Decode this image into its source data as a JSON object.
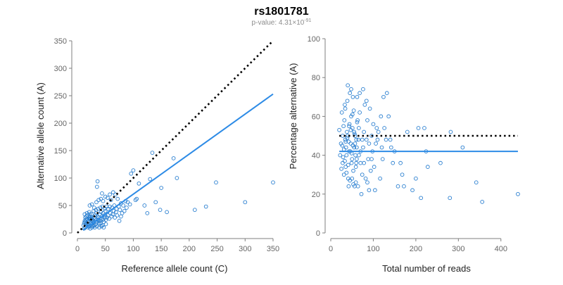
{
  "title": "rs1801781",
  "subtitle": {
    "prefix": "p-value: 4.31×10",
    "exponent": "-91"
  },
  "colors": {
    "points": "#2a7fd0",
    "fit": "#2d8be6",
    "reference": "#000000",
    "axis": "#7f7f7f"
  },
  "chart_data": [
    {
      "type": "scatter",
      "xlabel": "Reference allele count (C)",
      "ylabel": "Alternative allele count (A)",
      "xlim": [
        0,
        350
      ],
      "ylim": [
        0,
        350
      ],
      "xticks": [
        0,
        50,
        100,
        150,
        200,
        250,
        300,
        350
      ],
      "yticks": [
        0,
        50,
        100,
        150,
        200,
        250,
        300,
        350
      ],
      "reference_line": {
        "style": "dotted",
        "from": [
          0,
          0
        ],
        "to": [
          350,
          350
        ]
      },
      "fit_line": {
        "style": "solid",
        "from": [
          10,
          5
        ],
        "to": [
          350,
          253
        ]
      },
      "points": [
        [
          12,
          8
        ],
        [
          14,
          10
        ],
        [
          16,
          12
        ],
        [
          18,
          14
        ],
        [
          20,
          16
        ],
        [
          22,
          12
        ],
        [
          24,
          18
        ],
        [
          26,
          10
        ],
        [
          28,
          20
        ],
        [
          30,
          14
        ],
        [
          13,
          22
        ],
        [
          15,
          24
        ],
        [
          17,
          26
        ],
        [
          19,
          20
        ],
        [
          21,
          28
        ],
        [
          23,
          30
        ],
        [
          25,
          22
        ],
        [
          27,
          24
        ],
        [
          29,
          18
        ],
        [
          31,
          26
        ],
        [
          11,
          14
        ],
        [
          12,
          18
        ],
        [
          14,
          28
        ],
        [
          16,
          30
        ],
        [
          18,
          32
        ],
        [
          20,
          22
        ],
        [
          22,
          34
        ],
        [
          24,
          26
        ],
        [
          26,
          28
        ],
        [
          28,
          12
        ],
        [
          33,
          16
        ],
        [
          35,
          20
        ],
        [
          37,
          24
        ],
        [
          39,
          18
        ],
        [
          41,
          22
        ],
        [
          43,
          26
        ],
        [
          45,
          14
        ],
        [
          47,
          20
        ],
        [
          49,
          28
        ],
        [
          51,
          24
        ],
        [
          32,
          32
        ],
        [
          34,
          36
        ],
        [
          36,
          30
        ],
        [
          38,
          28
        ],
        [
          40,
          34
        ],
        [
          42,
          38
        ],
        [
          44,
          30
        ],
        [
          46,
          36
        ],
        [
          48,
          32
        ],
        [
          50,
          40
        ],
        [
          13,
          34
        ],
        [
          17,
          36
        ],
        [
          21,
          38
        ],
        [
          25,
          34
        ],
        [
          29,
          40
        ],
        [
          33,
          42
        ],
        [
          37,
          44
        ],
        [
          41,
          46
        ],
        [
          45,
          48
        ],
        [
          49,
          44
        ],
        [
          15,
          16
        ],
        [
          19,
          10
        ],
        [
          23,
          8
        ],
        [
          27,
          14
        ],
        [
          31,
          10
        ],
        [
          35,
          12
        ],
        [
          39,
          10
        ],
        [
          43,
          12
        ],
        [
          47,
          10
        ],
        [
          51,
          16
        ],
        [
          53,
          28
        ],
        [
          55,
          32
        ],
        [
          57,
          26
        ],
        [
          59,
          36
        ],
        [
          61,
          30
        ],
        [
          63,
          34
        ],
        [
          65,
          40
        ],
        [
          67,
          28
        ],
        [
          69,
          38
        ],
        [
          71,
          32
        ],
        [
          55,
          44
        ],
        [
          58,
          48
        ],
        [
          62,
          46
        ],
        [
          66,
          50
        ],
        [
          70,
          44
        ],
        [
          74,
          48
        ],
        [
          78,
          54
        ],
        [
          82,
          50
        ],
        [
          86,
          58
        ],
        [
          90,
          56
        ],
        [
          22,
          50
        ],
        [
          26,
          52
        ],
        [
          30,
          46
        ],
        [
          34,
          56
        ],
        [
          38,
          60
        ],
        [
          42,
          62
        ],
        [
          46,
          58
        ],
        [
          50,
          66
        ],
        [
          54,
          64
        ],
        [
          58,
          70
        ],
        [
          35,
          84
        ],
        [
          36,
          94
        ],
        [
          44,
          72
        ],
        [
          52,
          48
        ],
        [
          60,
          60
        ],
        [
          64,
          74
        ],
        [
          68,
          70
        ],
        [
          72,
          62
        ],
        [
          76,
          42
        ],
        [
          80,
          36
        ],
        [
          75,
          22
        ],
        [
          78,
          30
        ],
        [
          84,
          40
        ],
        [
          88,
          46
        ],
        [
          94,
          52
        ],
        [
          96,
          108
        ],
        [
          100,
          114
        ],
        [
          104,
          60
        ],
        [
          106,
          62
        ],
        [
          110,
          90
        ],
        [
          120,
          50
        ],
        [
          125,
          36
        ],
        [
          130,
          98
        ],
        [
          134,
          146
        ],
        [
          140,
          56
        ],
        [
          148,
          42
        ],
        [
          150,
          82
        ],
        [
          160,
          38
        ],
        [
          172,
          136
        ],
        [
          178,
          100
        ],
        [
          210,
          42
        ],
        [
          230,
          48
        ],
        [
          248,
          92
        ],
        [
          300,
          56
        ],
        [
          350,
          92
        ],
        [
          14,
          20
        ],
        [
          18,
          24
        ],
        [
          22,
          26
        ],
        [
          26,
          16
        ],
        [
          30,
          28
        ],
        [
          34,
          24
        ],
        [
          38,
          22
        ],
        [
          42,
          18
        ],
        [
          46,
          24
        ],
        [
          20,
          12
        ]
      ]
    },
    {
      "type": "scatter",
      "xlabel": "Total number of reads",
      "ylabel": "Percentage alternative (A)",
      "xlim": [
        0,
        450
      ],
      "ylim": [
        0,
        100
      ],
      "xticks": [
        0,
        100,
        200,
        300,
        400
      ],
      "yticks": [
        0,
        20,
        40,
        60,
        80,
        100
      ],
      "reference_line": {
        "style": "dotted",
        "y": 50,
        "from_x": 20,
        "to_x": 440
      },
      "fit_line": {
        "style": "solid",
        "y": 42,
        "from_x": 20,
        "to_x": 440
      },
      "points": [
        [
          20,
          53
        ],
        [
          24,
          46
        ],
        [
          28,
          50
        ],
        [
          30,
          55
        ],
        [
          32,
          58
        ],
        [
          34,
          48
        ],
        [
          36,
          44
        ],
        [
          38,
          52
        ],
        [
          40,
          50
        ],
        [
          42,
          47
        ],
        [
          44,
          56
        ],
        [
          46,
          42
        ],
        [
          48,
          60
        ],
        [
          50,
          38
        ],
        [
          52,
          45
        ],
        [
          54,
          63
        ],
        [
          56,
          51
        ],
        [
          58,
          40
        ],
        [
          60,
          48
        ],
        [
          62,
          57
        ],
        [
          26,
          62
        ],
        [
          28,
          36
        ],
        [
          31,
          30
        ],
        [
          33,
          66
        ],
        [
          35,
          34
        ],
        [
          37,
          40
        ],
        [
          39,
          68
        ],
        [
          41,
          28
        ],
        [
          43,
          42
        ],
        [
          45,
          72
        ],
        [
          47,
          46
        ],
        [
          49,
          36
        ],
        [
          51,
          54
        ],
        [
          53,
          32
        ],
        [
          55,
          44
        ],
        [
          57,
          50
        ],
        [
          59,
          26
        ],
        [
          61,
          38
        ],
        [
          63,
          58
        ],
        [
          65,
          48
        ],
        [
          22,
          40
        ],
        [
          25,
          33
        ],
        [
          27,
          45
        ],
        [
          29,
          39
        ],
        [
          31,
          43
        ],
        [
          33,
          37
        ],
        [
          35,
          47
        ],
        [
          37,
          31
        ],
        [
          39,
          49
        ],
        [
          41,
          35
        ],
        [
          43,
          55
        ],
        [
          45,
          27
        ],
        [
          47,
          53
        ],
        [
          49,
          41
        ],
        [
          51,
          61
        ],
        [
          53,
          25
        ],
        [
          55,
          52
        ],
        [
          57,
          46
        ],
        [
          59,
          34
        ],
        [
          61,
          44
        ],
        [
          64,
          24
        ],
        [
          66,
          40
        ],
        [
          68,
          62
        ],
        [
          70,
          36
        ],
        [
          72,
          20
        ],
        [
          74,
          30
        ],
        [
          76,
          44
        ],
        [
          78,
          52
        ],
        [
          80,
          66
        ],
        [
          82,
          28
        ],
        [
          84,
          48
        ],
        [
          86,
          58
        ],
        [
          88,
          38
        ],
        [
          90,
          46
        ],
        [
          92,
          64
        ],
        [
          94,
          32
        ],
        [
          96,
          50
        ],
        [
          98,
          42
        ],
        [
          100,
          56
        ],
        [
          102,
          34
        ],
        [
          40,
          76
        ],
        [
          48,
          74
        ],
        [
          52,
          70
        ],
        [
          62,
          70
        ],
        [
          68,
          72
        ],
        [
          76,
          74
        ],
        [
          84,
          68
        ],
        [
          90,
          22
        ],
        [
          96,
          38
        ],
        [
          104,
          22
        ],
        [
          106,
          46
        ],
        [
          108,
          54
        ],
        [
          110,
          48
        ],
        [
          112,
          52
        ],
        [
          116,
          28
        ],
        [
          118,
          60
        ],
        [
          120,
          44
        ],
        [
          122,
          38
        ],
        [
          124,
          70
        ],
        [
          126,
          54
        ],
        [
          130,
          48
        ],
        [
          132,
          72
        ],
        [
          136,
          60
        ],
        [
          140,
          48
        ],
        [
          142,
          44
        ],
        [
          146,
          36
        ],
        [
          150,
          42
        ],
        [
          158,
          24
        ],
        [
          164,
          36
        ],
        [
          168,
          30
        ],
        [
          172,
          24
        ],
        [
          180,
          52
        ],
        [
          192,
          22
        ],
        [
          200,
          28
        ],
        [
          206,
          54
        ],
        [
          212,
          18
        ],
        [
          220,
          54
        ],
        [
          224,
          42
        ],
        [
          228,
          34
        ],
        [
          258,
          36
        ],
        [
          280,
          18
        ],
        [
          282,
          52
        ],
        [
          310,
          44
        ],
        [
          342,
          26
        ],
        [
          356,
          16
        ],
        [
          440,
          20
        ],
        [
          34,
          64
        ],
        [
          42,
          24
        ],
        [
          50,
          28
        ],
        [
          56,
          24
        ],
        [
          60,
          36
        ],
        [
          66,
          54
        ],
        [
          70,
          42
        ],
        [
          74,
          48
        ],
        [
          78,
          36
        ],
        [
          86,
          26
        ]
      ]
    }
  ]
}
